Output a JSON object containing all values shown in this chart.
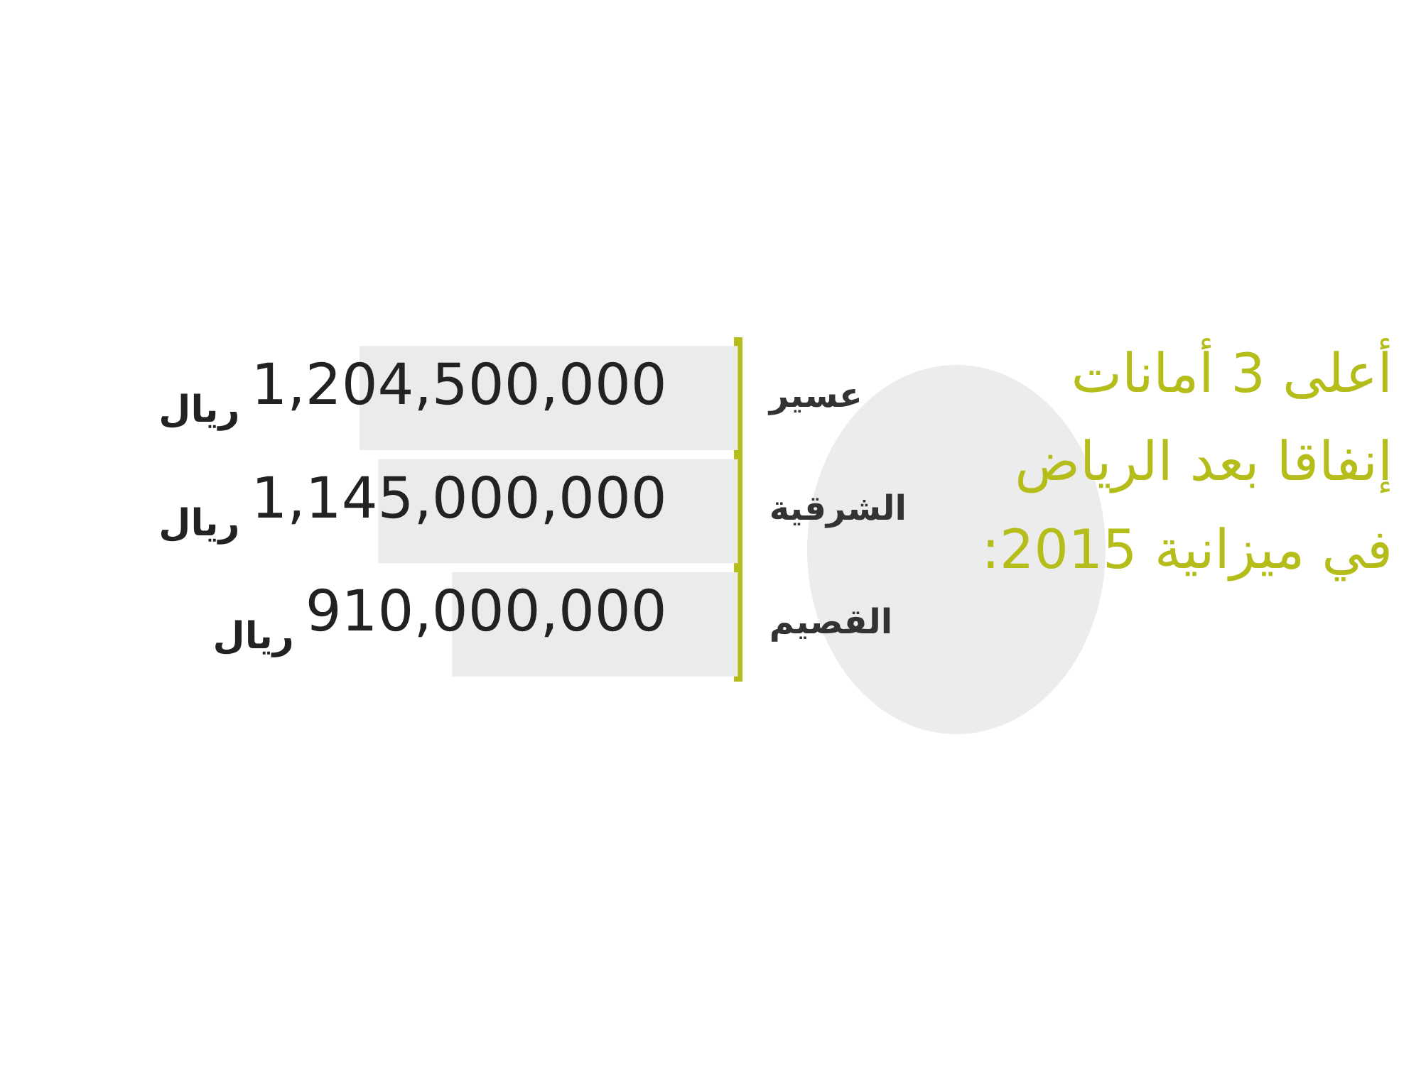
{
  "chart_data": {
    "type": "bar",
    "orientation": "horizontal",
    "title": "أعلى 3 أمانات إنفاقا بعد الرياض في ميزانية 2015:",
    "categories": [
      "عسير",
      "الشرقية",
      "القصيم"
    ],
    "values": [
      1204500000,
      1145000000,
      910000000
    ],
    "value_labels": [
      "1,204,500,000 ريال",
      "1,145,000,000 ريال",
      "910,000,000 ريال"
    ],
    "color": "#ebebeb",
    "legend": false,
    "tick_labels": "y"
  }
}
